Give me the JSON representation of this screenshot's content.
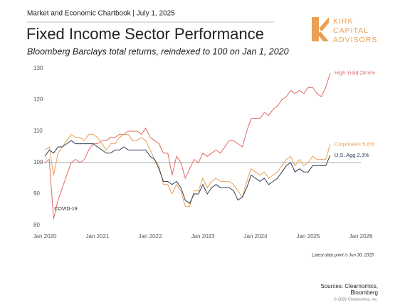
{
  "header": "Market and Economic Chartbook | July 1, 2025",
  "logo": [
    "KIRK",
    "CAPITAL",
    "ADVISORS"
  ],
  "footnote": "Latest data point is Jun 30, 2025",
  "sources": [
    "Sources: Clearnomics,",
    "Bloomberg"
  ],
  "copyright": "© 2025 Clearnomics, Inc.",
  "chart_data": {
    "type": "line",
    "title": "Fixed Income Sector Performance",
    "subtitle": "Bloomberg Barclays total returns, reindexed to 100 on Jan 1, 2020",
    "annotations": [
      {
        "text": "COVID-19",
        "x": "2020-03",
        "y": 85
      }
    ],
    "reference_line": 100,
    "x": [
      "2020-01",
      "2020-02",
      "2020-03",
      "2020-04",
      "2020-05",
      "2020-06",
      "2020-07",
      "2020-08",
      "2020-09",
      "2020-10",
      "2020-11",
      "2020-12",
      "2021-01",
      "2021-02",
      "2021-03",
      "2021-04",
      "2021-05",
      "2021-06",
      "2021-07",
      "2021-08",
      "2021-09",
      "2021-10",
      "2021-11",
      "2021-12",
      "2022-01",
      "2022-02",
      "2022-03",
      "2022-04",
      "2022-05",
      "2022-06",
      "2022-07",
      "2022-08",
      "2022-09",
      "2022-10",
      "2022-11",
      "2022-12",
      "2023-01",
      "2023-02",
      "2023-03",
      "2023-04",
      "2023-05",
      "2023-06",
      "2023-07",
      "2023-08",
      "2023-09",
      "2023-10",
      "2023-11",
      "2023-12",
      "2024-01",
      "2024-02",
      "2024-03",
      "2024-04",
      "2024-05",
      "2024-06",
      "2024-07",
      "2024-08",
      "2024-09",
      "2024-10",
      "2024-11",
      "2024-12",
      "2025-01",
      "2025-02",
      "2025-03",
      "2025-04",
      "2025-05",
      "2025-06"
    ],
    "series": [
      {
        "name": "High Yield 28.5%",
        "color": "#e06a66",
        "values": [
          100,
          101,
          82,
          88,
          92,
          96,
          100,
          101,
          100,
          101,
          104,
          106,
          106,
          107,
          107,
          108,
          108,
          109,
          109,
          110,
          110,
          110,
          109,
          111,
          108,
          107,
          106,
          103,
          103,
          96,
          102,
          100,
          95,
          98,
          101,
          100,
          103,
          102,
          103,
          104,
          103,
          105,
          107,
          107,
          106,
          105,
          110,
          114,
          114,
          114,
          116,
          115,
          117,
          118,
          120,
          121,
          123,
          122,
          123,
          122,
          124,
          124,
          122,
          121,
          124,
          128.5
        ]
      },
      {
        "name": "Corporates 5.8%",
        "color": "#e9a054",
        "values": [
          104,
          105,
          96,
          103,
          105,
          107,
          109,
          108,
          108,
          107,
          109,
          109,
          108,
          106,
          104,
          106,
          106,
          108,
          109,
          109,
          107,
          107,
          108,
          107,
          104,
          101,
          99,
          93,
          93,
          90,
          93,
          91,
          86,
          86,
          91,
          91,
          95,
          92,
          94,
          95,
          94,
          94,
          94,
          93,
          91,
          89,
          94,
          98,
          97,
          96,
          97,
          95,
          96,
          97,
          99,
          101,
          102,
          99,
          101,
          99,
          100,
          102,
          101,
          101,
          101,
          105.8
        ]
      },
      {
        "name": "U.S. Agg 2.3%",
        "color": "#2d3e54",
        "values": [
          102,
          104,
          103,
          105,
          105,
          106,
          107,
          106,
          106,
          106,
          106,
          106,
          105,
          104,
          103,
          103,
          104,
          104,
          105,
          104,
          104,
          104,
          104,
          104,
          102,
          101,
          98,
          94,
          94,
          93,
          94,
          92,
          88,
          87,
          90,
          90,
          93,
          90,
          92,
          93,
          92,
          92,
          92,
          91,
          88,
          89,
          92,
          96,
          95,
          94,
          95,
          93,
          94,
          95,
          97,
          99,
          100,
          97,
          98,
          97,
          97,
          99,
          99,
          99,
          99,
          102.3
        ]
      }
    ],
    "xlim": [
      "2020-01",
      "2026-01"
    ],
    "xticks": [
      {
        "value": "2020-01",
        "label": "Jan 2020"
      },
      {
        "value": "2021-01",
        "label": "Jan 2021"
      },
      {
        "value": "2022-01",
        "label": "Jan 2022"
      },
      {
        "value": "2023-01",
        "label": "Jan 2023"
      },
      {
        "value": "2024-01",
        "label": "Jan 2024"
      },
      {
        "value": "2025-01",
        "label": "Jan 2025"
      },
      {
        "value": "2026-01",
        "label": "Jan 2026"
      }
    ],
    "ylim": [
      80,
      130
    ],
    "yticks": [
      80,
      90,
      100,
      110,
      120,
      130
    ]
  }
}
